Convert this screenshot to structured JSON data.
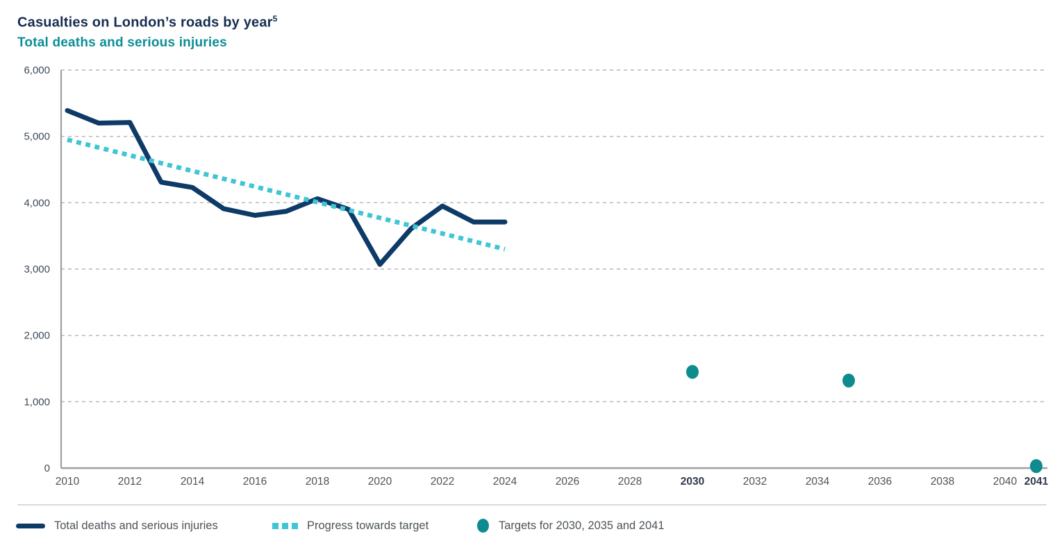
{
  "header": {
    "title": "Casualties on London’s roads by year",
    "title_superscript": "5",
    "subtitle": "Total deaths and serious injuries"
  },
  "colors": {
    "navy": "#0d3a67",
    "teal_dash": "#3fc5d4",
    "teal_dot": "#0e8b8f",
    "title_navy": "#152d4f",
    "subtitle_teal": "#0b8e95",
    "grid": "#b5b5b5",
    "axis": "#9e9e9e",
    "xtick_text": "#4d5258",
    "xtick_text_bold": "#2e3a49",
    "ytick_text": "#3a4a5a",
    "legend_text": "#4d5358"
  },
  "chart_data": {
    "type": "line",
    "title": "Casualties on London's roads by year",
    "subtitle": "Total deaths and serious injuries",
    "grid": "horizontal-dashed",
    "y_axis": {
      "min": 0,
      "max": 6000,
      "tick_interval": 1000,
      "ticks": [
        {
          "value": 6000,
          "label": "6,000"
        },
        {
          "value": 5000,
          "label": "5,000"
        },
        {
          "value": 4000,
          "label": "4,000"
        },
        {
          "value": 3000,
          "label": "3,000"
        },
        {
          "value": 2000,
          "label": "2,000"
        },
        {
          "value": 1000,
          "label": "1,000"
        },
        {
          "value": 0,
          "label": "0"
        }
      ]
    },
    "x_axis": {
      "min": 2010,
      "max": 2041,
      "ticks": [
        {
          "year": 2010,
          "label": "2010",
          "bold": false
        },
        {
          "year": 2012,
          "label": "2012",
          "bold": false
        },
        {
          "year": 2014,
          "label": "2014",
          "bold": false
        },
        {
          "year": 2016,
          "label": "2016",
          "bold": false
        },
        {
          "year": 2018,
          "label": "2018",
          "bold": false
        },
        {
          "year": 2020,
          "label": "2020",
          "bold": false
        },
        {
          "year": 2022,
          "label": "2022",
          "bold": false
        },
        {
          "year": 2024,
          "label": "2024",
          "bold": false
        },
        {
          "year": 2026,
          "label": "2026",
          "bold": false
        },
        {
          "year": 2028,
          "label": "2028",
          "bold": false
        },
        {
          "year": 2030,
          "label": "2030",
          "bold": true
        },
        {
          "year": 2032,
          "label": "2032",
          "bold": false
        },
        {
          "year": 2034,
          "label": "2034",
          "bold": false
        },
        {
          "year": 2036,
          "label": "2036",
          "bold": false
        },
        {
          "year": 2038,
          "label": "2038",
          "bold": false
        },
        {
          "year": 2040,
          "label": "2040",
          "bold": false
        },
        {
          "year": 2041,
          "label": "2041",
          "bold": true
        }
      ]
    },
    "series": [
      {
        "name": "Total deaths and serious injuries",
        "type": "line",
        "color_key": "navy",
        "x": [
          2010,
          2011,
          2012,
          2013,
          2014,
          2015,
          2016,
          2017,
          2018,
          2019,
          2020,
          2021,
          2022,
          2023,
          2024
        ],
        "values": [
          5390,
          5200,
          5210,
          4310,
          4230,
          3910,
          3810,
          3870,
          4060,
          3900,
          3070,
          3610,
          3950,
          3710,
          3710
        ]
      },
      {
        "name": "Progress towards target",
        "type": "dashed-line",
        "color_key": "teal_dash",
        "x": [
          2010,
          2024
        ],
        "values": [
          4950,
          3300
        ]
      },
      {
        "name": "Targets for 2030, 2035 and 2041",
        "type": "points",
        "color_key": "teal_dot",
        "points": [
          {
            "x": 2030,
            "y": 1450
          },
          {
            "x": 2035,
            "y": 1320
          },
          {
            "x": 2041,
            "y": 30
          }
        ]
      }
    ]
  },
  "legend": {
    "items": [
      {
        "label": "Total deaths and serious injuries"
      },
      {
        "label": "Progress towards target"
      },
      {
        "label": "Targets for 2030, 2035 and 2041"
      }
    ]
  }
}
